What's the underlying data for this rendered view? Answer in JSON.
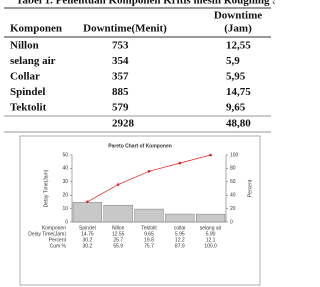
{
  "table": {
    "title": "Tabel 1. Penentuan Komponen Kritis mesin Roughing Stand",
    "header_komponen": "Komponen",
    "header_menit": "Downtime(Menit)",
    "header_jam": [
      "Downtime",
      "(Jam)"
    ],
    "rows": [
      [
        "Nillon",
        "753",
        "12,55"
      ],
      [
        "selang air",
        "354",
        "5,9"
      ],
      [
        "Collar",
        "357",
        "5,95"
      ],
      [
        "Spindel",
        "885",
        "14,75"
      ],
      [
        "Tektolit",
        "579",
        "9,65"
      ]
    ],
    "total_menit": "2928",
    "total_jam": "48,80"
  },
  "chart_data": {
    "type": "pareto",
    "title": "Pareto Chart of Komponen",
    "ylabel": "Delay Time(Jam)",
    "y2label": "Percent",
    "categories_label": "Komponen",
    "categories": [
      "Spindel",
      "Nillon",
      "Tektolit",
      "collar",
      "selang air"
    ],
    "series": [
      {
        "name": "Delay Time(Jam)",
        "color": "#c8c8c8",
        "values": [
          14.75,
          12.55,
          9.65,
          5.95,
          5.9
        ],
        "value_labels": [
          "14.75",
          "12.55",
          "9.65",
          "5.95",
          "5.90"
        ]
      },
      {
        "name": "Percent",
        "color": "#d02020",
        "values": [
          30.2,
          25.7,
          19.8,
          12.2,
          12.1
        ]
      },
      {
        "name": "Cum %",
        "color": "#e0201b",
        "axis": "y2",
        "values": [
          30.2,
          55.9,
          75.7,
          87.9,
          100
        ],
        "value_labels": [
          "30.2",
          "55.9",
          "75.7",
          "87.9",
          "100.0"
        ]
      }
    ],
    "ylim": [
      0,
      50
    ],
    "yticks": [
      0,
      10,
      20,
      30,
      40,
      50
    ],
    "y2lim": [
      0,
      100
    ],
    "y2ticks": [
      0,
      20,
      40,
      60,
      80,
      100
    ]
  }
}
